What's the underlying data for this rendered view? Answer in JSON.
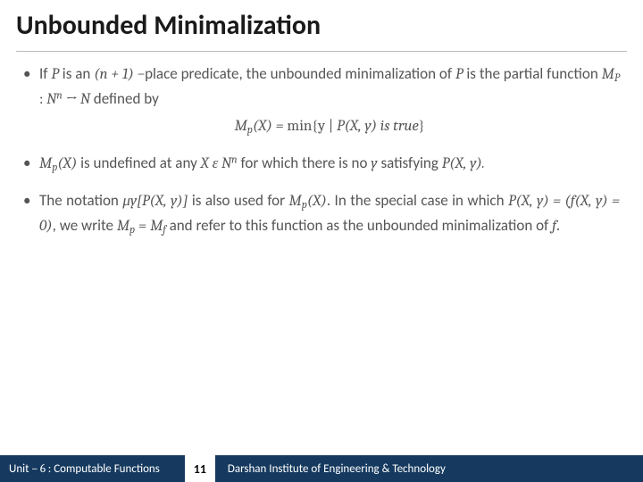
{
  "title": "Unbounded Minimalization",
  "bullets": {
    "b1_pre": "If ",
    "b1_P": "P",
    "b1_mid1": " is an ",
    "b1_np1": "(n + 1) −",
    "b1_mid2": "place predicate, the unbounded minimalization of ",
    "b1_P2": "P",
    "b1_mid3": " is the partial function ",
    "b1_fn": "M",
    "b1_fn_sub": "P",
    "b1_colon": " : ",
    "b1_dom": "N",
    "b1_dom_sup": "n",
    "b1_arrow": " →  N",
    "b1_def": " defined by",
    "eq_lhs_M": "M",
    "eq_lhs_sub": "p",
    "eq_lhs_X": "(X)  =  ",
    "eq_min": "min",
    "eq_set_open": "{y | ",
    "eq_pred": "P(X, y) is true",
    "eq_set_close": "}",
    "b2_M": "M",
    "b2_sub": "p",
    "b2_X": "(X)",
    "b2_txt1": " is undefined at any ",
    "b2_Xe": "X ε N",
    "b2_sup": "n",
    "b2_txt2": " for which there is no ",
    "b2_y": "y",
    "b2_txt3": " satisfying ",
    "b2_P": "P(X, y).",
    "b3_txt1": "The notation ",
    "b3_mu": "μy[P(X, y)]",
    "b3_txt2": " is also used for ",
    "b3_M": "M",
    "b3_sub": "p",
    "b3_X": "(X)",
    "b3_txt3": ". In the special case in which ",
    "b3_case": "P(X, y) = (f(X, y) = 0)",
    "b3_txt4": ", we write ",
    "b3_Mp": "M",
    "b3_Mp_sub": "p",
    "b3_eq": " = ",
    "b3_Mf": "M",
    "b3_Mf_sub": "f",
    "b3_txt5": " and refer to this function as the unbounded minimalization of ",
    "b3_f": "f",
    "b3_dot": "."
  },
  "footer": {
    "unit_prefix": "Unit ",
    "unit_hash": "– 6 ",
    "unit_suffix": ": Computable Functions",
    "page": "11",
    "inst": "Darshan Institute of Engineering & Technology"
  },
  "colors": {
    "footer_bg": "#163a5f",
    "rule": "#bbbbbb",
    "body_text": "#555555",
    "title_text": "#1a1a1a"
  },
  "fonts": {
    "title_size_pt": 30,
    "body_size_pt": 17,
    "footer_size_pt": 13
  }
}
